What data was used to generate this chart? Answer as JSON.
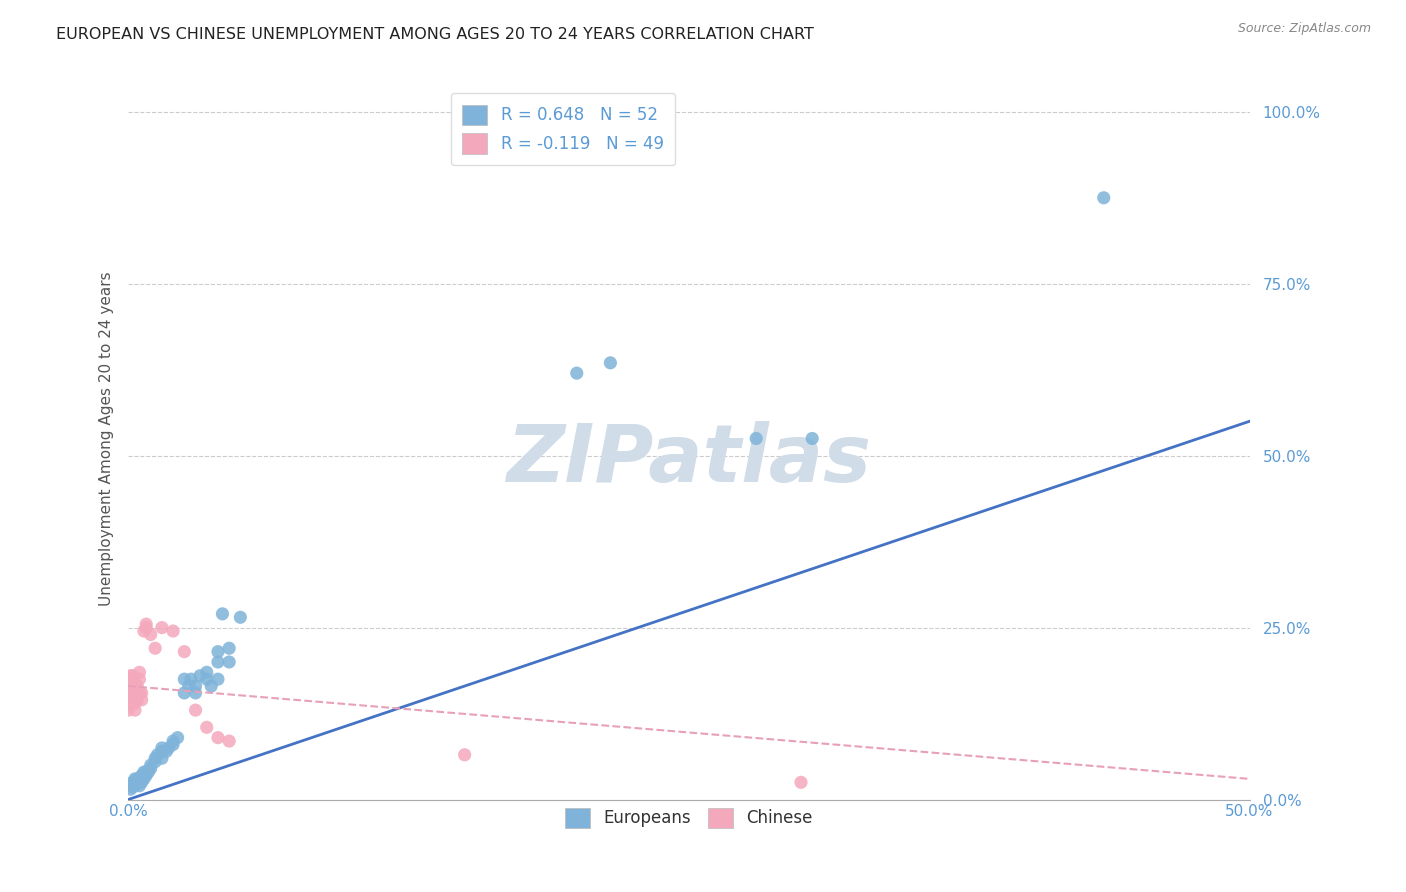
{
  "title": "EUROPEAN VS CHINESE UNEMPLOYMENT AMONG AGES 20 TO 24 YEARS CORRELATION CHART",
  "source": "Source: ZipAtlas.com",
  "ylabel": "Unemployment Among Ages 20 to 24 years",
  "xlim": [
    0.0,
    0.5
  ],
  "ylim": [
    0.0,
    1.05
  ],
  "title_color": "#222222",
  "source_color": "#888888",
  "background_color": "#ffffff",
  "grid_color": "#cccccc",
  "watermark_text": "ZIPatlas",
  "watermark_color": "#d0dce8",
  "legend_entries": [
    {
      "label": "R = 0.648   N = 52",
      "color": "#aac4e0"
    },
    {
      "label": "R = -0.119   N = 49",
      "color": "#f4b8c8"
    }
  ],
  "european_color": "#7fb3d9",
  "chinese_color": "#f4a8bc",
  "european_line_color": "#4472c4",
  "chinese_line_color": "#e8a0b8",
  "eu_line_x": [
    0.0,
    0.5
  ],
  "eu_line_y": [
    0.0,
    0.55
  ],
  "ch_line_x": [
    0.0,
    0.5
  ],
  "ch_line_y": [
    0.165,
    0.03
  ],
  "european_scatter": [
    [
      0.001,
      0.015
    ],
    [
      0.001,
      0.02
    ],
    [
      0.002,
      0.018
    ],
    [
      0.002,
      0.025
    ],
    [
      0.003,
      0.02
    ],
    [
      0.003,
      0.03
    ],
    [
      0.004,
      0.025
    ],
    [
      0.004,
      0.03
    ],
    [
      0.005,
      0.02
    ],
    [
      0.005,
      0.03
    ],
    [
      0.006,
      0.025
    ],
    [
      0.006,
      0.035
    ],
    [
      0.007,
      0.03
    ],
    [
      0.007,
      0.04
    ],
    [
      0.008,
      0.035
    ],
    [
      0.008,
      0.04
    ],
    [
      0.009,
      0.04
    ],
    [
      0.01,
      0.045
    ],
    [
      0.01,
      0.05
    ],
    [
      0.012,
      0.055
    ],
    [
      0.012,
      0.06
    ],
    [
      0.013,
      0.065
    ],
    [
      0.015,
      0.06
    ],
    [
      0.015,
      0.07
    ],
    [
      0.015,
      0.075
    ],
    [
      0.017,
      0.07
    ],
    [
      0.018,
      0.075
    ],
    [
      0.02,
      0.08
    ],
    [
      0.02,
      0.085
    ],
    [
      0.022,
      0.09
    ],
    [
      0.025,
      0.155
    ],
    [
      0.025,
      0.175
    ],
    [
      0.027,
      0.165
    ],
    [
      0.028,
      0.175
    ],
    [
      0.03,
      0.155
    ],
    [
      0.03,
      0.165
    ],
    [
      0.032,
      0.18
    ],
    [
      0.035,
      0.175
    ],
    [
      0.035,
      0.185
    ],
    [
      0.037,
      0.165
    ],
    [
      0.04,
      0.175
    ],
    [
      0.04,
      0.2
    ],
    [
      0.04,
      0.215
    ],
    [
      0.042,
      0.27
    ],
    [
      0.045,
      0.2
    ],
    [
      0.045,
      0.22
    ],
    [
      0.05,
      0.265
    ],
    [
      0.2,
      0.62
    ],
    [
      0.215,
      0.635
    ],
    [
      0.28,
      0.525
    ],
    [
      0.305,
      0.525
    ],
    [
      0.435,
      0.875
    ]
  ],
  "chinese_scatter": [
    [
      0.0,
      0.13
    ],
    [
      0.0,
      0.15
    ],
    [
      0.0,
      0.155
    ],
    [
      0.0,
      0.16
    ],
    [
      0.0,
      0.17
    ],
    [
      0.0,
      0.175
    ],
    [
      0.001,
      0.14
    ],
    [
      0.001,
      0.15
    ],
    [
      0.001,
      0.155
    ],
    [
      0.001,
      0.165
    ],
    [
      0.001,
      0.17
    ],
    [
      0.001,
      0.175
    ],
    [
      0.001,
      0.18
    ],
    [
      0.002,
      0.145
    ],
    [
      0.002,
      0.155
    ],
    [
      0.002,
      0.16
    ],
    [
      0.002,
      0.165
    ],
    [
      0.002,
      0.17
    ],
    [
      0.002,
      0.175
    ],
    [
      0.002,
      0.18
    ],
    [
      0.003,
      0.13
    ],
    [
      0.003,
      0.14
    ],
    [
      0.003,
      0.155
    ],
    [
      0.003,
      0.16
    ],
    [
      0.003,
      0.165
    ],
    [
      0.003,
      0.17
    ],
    [
      0.004,
      0.145
    ],
    [
      0.004,
      0.155
    ],
    [
      0.004,
      0.16
    ],
    [
      0.004,
      0.165
    ],
    [
      0.005,
      0.155
    ],
    [
      0.005,
      0.175
    ],
    [
      0.005,
      0.185
    ],
    [
      0.006,
      0.145
    ],
    [
      0.006,
      0.155
    ],
    [
      0.007,
      0.245
    ],
    [
      0.008,
      0.25
    ],
    [
      0.008,
      0.255
    ],
    [
      0.01,
      0.24
    ],
    [
      0.012,
      0.22
    ],
    [
      0.015,
      0.25
    ],
    [
      0.02,
      0.245
    ],
    [
      0.025,
      0.215
    ],
    [
      0.03,
      0.13
    ],
    [
      0.035,
      0.105
    ],
    [
      0.04,
      0.09
    ],
    [
      0.045,
      0.085
    ],
    [
      0.15,
      0.065
    ],
    [
      0.3,
      0.025
    ]
  ]
}
